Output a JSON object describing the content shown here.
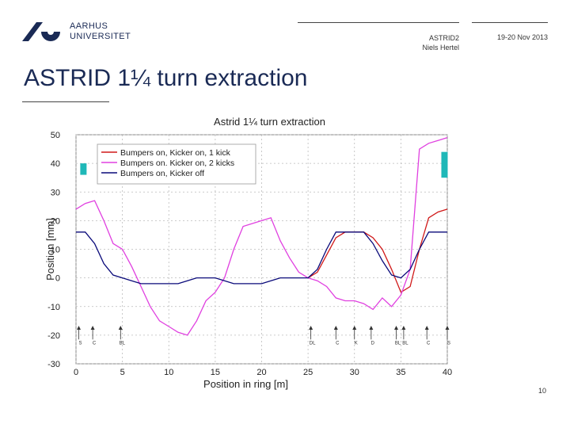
{
  "header": {
    "logo_line1": "AARHUS",
    "logo_line2": "UNIVERSITET",
    "event_line1": "ASTRID2",
    "event_line2": "Niels Hertel",
    "date": "19-20 Nov 2013"
  },
  "slide": {
    "title": "ASTRID 1¼ turn extraction",
    "page_number": "10"
  },
  "colors": {
    "brand": "#1a2a55",
    "red": "#d01818",
    "magenta": "#e040e0",
    "blue": "#0a0a7a",
    "teal": "#1fb8b8"
  },
  "chart_data": {
    "type": "line",
    "title": "Astrid 1¼ turn extraction",
    "xlabel": "Position in ring [m]",
    "ylabel": "Position [mm]",
    "xlim": [
      0,
      40
    ],
    "ylim": [
      -30,
      50
    ],
    "xticks": [
      "0",
      "5",
      "10",
      "15",
      "20",
      "25",
      "30",
      "35",
      "40"
    ],
    "yticks": [
      "-30",
      "-20",
      "-10",
      "0",
      "10",
      "20",
      "30",
      "40",
      "50"
    ],
    "grid": true,
    "legend_position": "top-left",
    "series": [
      {
        "name": "Bumpers on, Kicker on, 1 kick",
        "color": "#d01818",
        "x": [
          25,
          26,
          27,
          28,
          29,
          30,
          31,
          32,
          33,
          34,
          35,
          36,
          37,
          38,
          39,
          40
        ],
        "y": [
          0,
          2,
          8,
          14,
          16,
          16,
          16,
          14,
          10,
          3,
          -5,
          -3,
          10,
          21,
          23,
          24
        ]
      },
      {
        "name": "Bumpers on. Kicker on, 2 kicks",
        "color": "#e040e0",
        "x": [
          0,
          1,
          2,
          3,
          4,
          5,
          6,
          7,
          8,
          9,
          10,
          11,
          12,
          13,
          14,
          15,
          16,
          17,
          18,
          19,
          20,
          21,
          22,
          23,
          24,
          25,
          26,
          27,
          28,
          29,
          30,
          31,
          32,
          33,
          34,
          35,
          36,
          37,
          38,
          39,
          40
        ],
        "y": [
          24,
          26,
          27,
          20,
          12,
          10,
          4,
          -3,
          -10,
          -15,
          -17,
          -19,
          -20,
          -15,
          -8,
          -5,
          0,
          10,
          18,
          19,
          20,
          21,
          13,
          7,
          2,
          0,
          -1,
          -3,
          -7,
          -8,
          -8,
          -9,
          -11,
          -7,
          -10,
          -6,
          3,
          45,
          47,
          48,
          49
        ]
      },
      {
        "name": "Bumpers on, Kicker off",
        "color": "#0a0a7a",
        "x": [
          0,
          1,
          2,
          3,
          4,
          5,
          6,
          7,
          8,
          9,
          10,
          11,
          12,
          13,
          14,
          15,
          16,
          17,
          18,
          19,
          20,
          21,
          22,
          23,
          24,
          25,
          26,
          27,
          28,
          29,
          30,
          31,
          32,
          33,
          34,
          35,
          36,
          37,
          38,
          39,
          40
        ],
        "y": [
          16,
          16,
          12,
          5,
          1,
          0,
          -1,
          -2,
          -2,
          -2,
          -2,
          -2,
          -1,
          0,
          0,
          0,
          -1,
          -2,
          -2,
          -2,
          -2,
          -1,
          0,
          0,
          0,
          0,
          3,
          10,
          16,
          16,
          16,
          16,
          12,
          6,
          1,
          0,
          3,
          10,
          16,
          16,
          16
        ]
      }
    ],
    "annotations": {
      "markers": [
        {
          "x": 0.3,
          "label": "S"
        },
        {
          "x": 1.8,
          "label": "C"
        },
        {
          "x": 4.8,
          "label": "BL"
        },
        {
          "x": 25.3,
          "label": "DL"
        },
        {
          "x": 28,
          "label": "C"
        },
        {
          "x": 30,
          "label": "K"
        },
        {
          "x": 31.8,
          "label": "D"
        },
        {
          "x": 34.5,
          "label": "BL"
        },
        {
          "x": 35.3,
          "label": "BL"
        },
        {
          "x": 37.8,
          "label": "C"
        },
        {
          "x": 40,
          "label": "S"
        }
      ],
      "teal_bars": [
        {
          "x": 0.8,
          "y_top": 40,
          "y_bottom": 36
        },
        {
          "x": 39.7,
          "y_top": 44,
          "y_bottom": 35
        }
      ]
    }
  }
}
